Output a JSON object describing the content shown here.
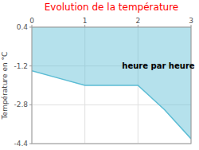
{
  "chart_data": {
    "type": "area",
    "title": "Evolution de la température",
    "ylabel": "Température en °C",
    "annotations": [
      {
        "text": "heure par heure",
        "x": 1.7,
        "y": -1.3
      }
    ],
    "x": [
      0,
      0.5,
      1.0,
      2.0,
      2.5,
      3.0
    ],
    "series": [
      {
        "color": "#5bbcd4",
        "values": [
          -1.4,
          -1.7,
          -2.0,
          -2.0,
          -3.0,
          -4.2
        ]
      }
    ],
    "xlim": [
      0,
      3
    ],
    "xticks": [
      0,
      1,
      2,
      3
    ],
    "ylim": [
      -4.4,
      0.4
    ],
    "yticks": [
      0.4,
      -1.2,
      -2.8,
      -4.4
    ],
    "grid": true
  }
}
